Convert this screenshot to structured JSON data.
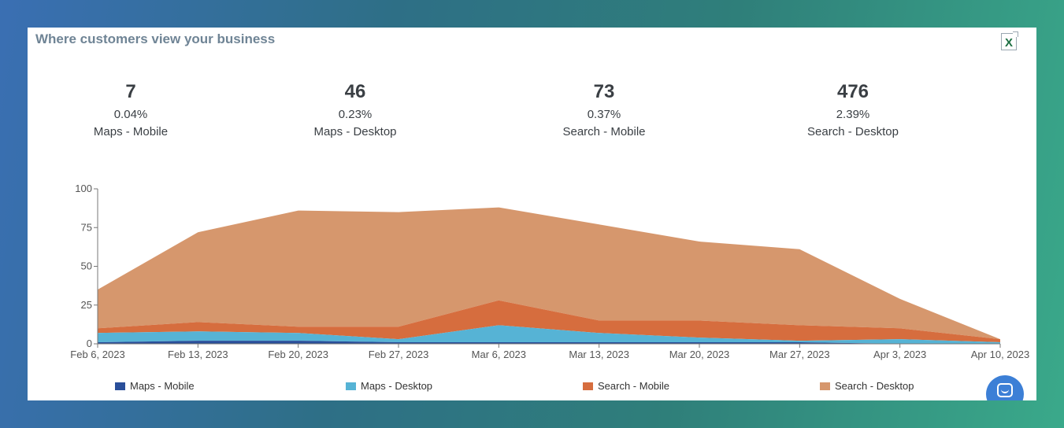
{
  "card": {
    "title": "Where customers view your business",
    "export_label": "X"
  },
  "stats": [
    {
      "value": "7",
      "percent": "0.04%",
      "label": "Maps - Mobile"
    },
    {
      "value": "46",
      "percent": "0.23%",
      "label": "Maps - Desktop"
    },
    {
      "value": "73",
      "percent": "0.37%",
      "label": "Search - Mobile"
    },
    {
      "value": "476",
      "percent": "2.39%",
      "label": "Search - Desktop"
    }
  ],
  "chart_data": {
    "type": "area",
    "stacked": true,
    "x": [
      "Feb 6, 2023",
      "Feb 13, 2023",
      "Feb 20, 2023",
      "Feb 27, 2023",
      "Mar 6, 2023",
      "Mar 13, 2023",
      "Mar 20, 2023",
      "Mar 27, 2023",
      "Apr 3, 2023",
      "Apr 10, 2023"
    ],
    "ylim": [
      0,
      100
    ],
    "yticks": [
      0,
      25,
      50,
      75,
      100
    ],
    "grid": false,
    "legend": "bottom",
    "series": [
      {
        "name": "Maps - Mobile",
        "color": "#2a4f9a",
        "values": [
          1,
          2,
          2,
          1,
          1,
          1,
          1,
          1,
          0,
          0
        ]
      },
      {
        "name": "Maps - Desktop",
        "color": "#56b3d5",
        "values": [
          6,
          6,
          5,
          2,
          11,
          6,
          3,
          1,
          3,
          1
        ]
      },
      {
        "name": "Search - Mobile",
        "color": "#d66d3e",
        "values": [
          3,
          6,
          4,
          8,
          16,
          8,
          11,
          10,
          7,
          2
        ]
      },
      {
        "name": "Search - Desktop",
        "color": "#d6976d",
        "values": [
          25,
          58,
          75,
          74,
          60,
          62,
          51,
          49,
          19,
          0
        ]
      }
    ]
  },
  "chat": {
    "icon": "chat-bubble-icon"
  }
}
